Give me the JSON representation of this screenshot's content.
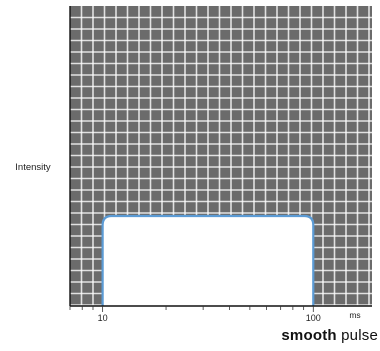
{
  "chart_data": {
    "type": "area",
    "ylabel": "Intensity",
    "x_unit": "ms",
    "x_scale": "log",
    "xlim": [
      7,
      190
    ],
    "ylim": [
      0,
      1
    ],
    "x_ticks": [
      {
        "value": 10,
        "label": "10"
      },
      {
        "value": 100,
        "label": "100"
      }
    ],
    "pulse": {
      "start": 10,
      "end": 100,
      "level": 0.3
    },
    "grid": true,
    "colors": {
      "plot_bg": "#6b6b6b",
      "grid": "#ffffff",
      "pulse_fill": "#ffffff",
      "pulse_edge": "#5b9bd5"
    }
  },
  "caption": {
    "bold": "smooth",
    "rest": "pulse"
  }
}
